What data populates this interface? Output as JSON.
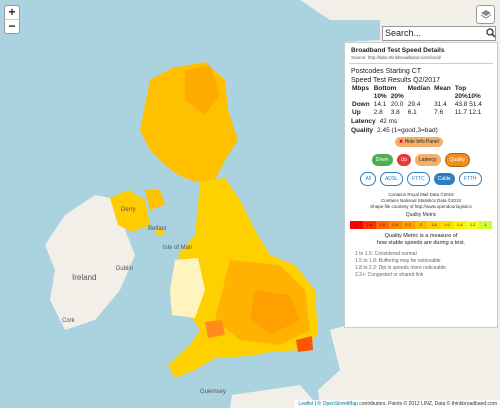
{
  "zoom": {
    "in": "+",
    "out": "−"
  },
  "search": {
    "placeholder": "Search..."
  },
  "panel": {
    "title": "Broadband Test Speed Details",
    "source": "Source: http://labs.thinkbroadband.com/local/",
    "heading1": "Postcodes Starting CT",
    "heading2": "Speed Test Results Q2/2017",
    "headers": {
      "mbps": "Mbps",
      "bottom": "Bottom",
      "bottom10": "10%",
      "bottom20": "20%",
      "median": "Median",
      "mean": "Mean",
      "top": "Top",
      "top2010": "20%10%"
    },
    "down": {
      "label": "Down",
      "b10": "14.1",
      "b20": "20.0",
      "median": "29.4",
      "mean": "31.4",
      "top20": "43.8",
      "top10": "51.4"
    },
    "up": {
      "label": "Up",
      "b10": "2.8",
      "b20": "3.8",
      "median": "6.1",
      "mean": "7.6",
      "top20": "11.7",
      "top10": "12.1"
    },
    "latency": {
      "label": "Latency",
      "value": "42 ms"
    },
    "quality": {
      "label": "Quality",
      "value": "2.45 (1=good,3=bad)"
    },
    "hide_label": "Hide Info Panel",
    "metric_buttons": [
      "Down",
      "Up",
      "Latency",
      "Quality"
    ],
    "tech_buttons": [
      "All",
      "ADSL",
      "FTTC",
      "Cable",
      "FTTH"
    ],
    "credits": [
      "Contains Royal Mail Data ©2015",
      "Contains National Statistics Data ©2015",
      "Shape file courtesy of http://www.opendoorlogistics"
    ],
    "legend_title": "Quality Metric",
    "legend_values": [
      "3",
      "2.8",
      "2.6",
      "2.4",
      "2.2",
      "2",
      "1.8",
      "1.6",
      "1.4",
      "1.2",
      "1"
    ],
    "note": [
      "Quality Metric is a measure of",
      "how stable speeds are during a test."
    ],
    "key": [
      "1 to 1.5: Considered normal",
      "1.5 to 1.8: Buffering may be noticeable",
      "1.8 to 2.2: Dip in speeds more noticeable",
      "2.2+: Congested or shared link"
    ]
  },
  "map_labels": {
    "derry": "Derry",
    "belfast": "Belfast",
    "isle_of_man": "Isle of Man",
    "dublin": "Dublin",
    "ireland": "Ireland",
    "cork": "Cork",
    "guernsey": "Guernsey"
  },
  "attribution": {
    "leaflet": "Leaflet",
    "osm": "© OpenStreetMap",
    "rest": " contributors. Points © 2012 LINZ, Data © thinkbroadband.com"
  },
  "colors": {
    "quality_bad": "#ff3300",
    "quality_mid": "#ffcc00",
    "quality_good": "#ccff33"
  }
}
